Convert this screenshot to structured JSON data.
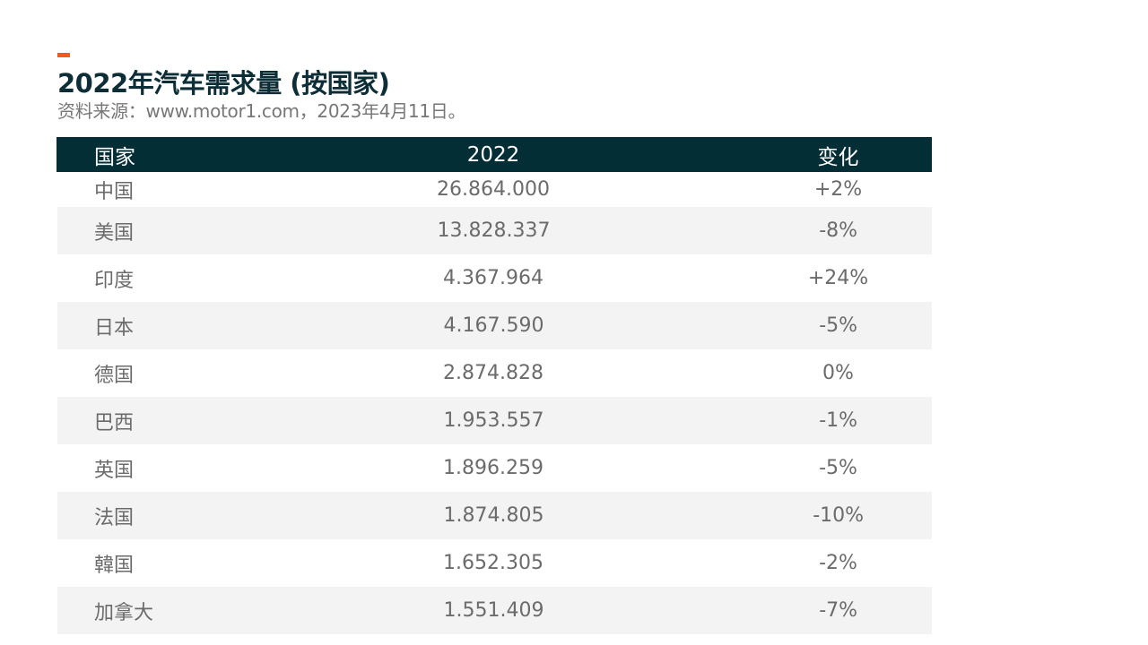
{
  "title": "2022年汽车需求量 (按国家)",
  "subtitle": "资料来源：www.motor1.com，2023年4月11日。",
  "colors": {
    "accent": "#f05a1a",
    "header_bg": "#032e36",
    "title_color": "#0d2e36",
    "row_alt_bg": "#f3f3f3"
  },
  "table": {
    "headers": [
      "国家",
      "2022",
      "变化"
    ],
    "rows": [
      {
        "country": "中国",
        "value": "26.864.000",
        "change": "+2%"
      },
      {
        "country": "美国",
        "value": "13.828.337",
        "change": "-8%"
      },
      {
        "country": "印度",
        "value": "4.367.964",
        "change": "+24%"
      },
      {
        "country": "日本",
        "value": "4.167.590",
        "change": "-5%"
      },
      {
        "country": "德国",
        "value": "2.874.828",
        "change": "0%"
      },
      {
        "country": "巴西",
        "value": "1.953.557",
        "change": "-1%"
      },
      {
        "country": "英国",
        "value": "1.896.259",
        "change": "-5%"
      },
      {
        "country": "法国",
        "value": "1.874.805",
        "change": "-10%"
      },
      {
        "country": "韓国",
        "value": "1.652.305",
        "change": "-2%"
      },
      {
        "country": "加拿大",
        "value": "1.551.409",
        "change": "-7%"
      }
    ]
  }
}
